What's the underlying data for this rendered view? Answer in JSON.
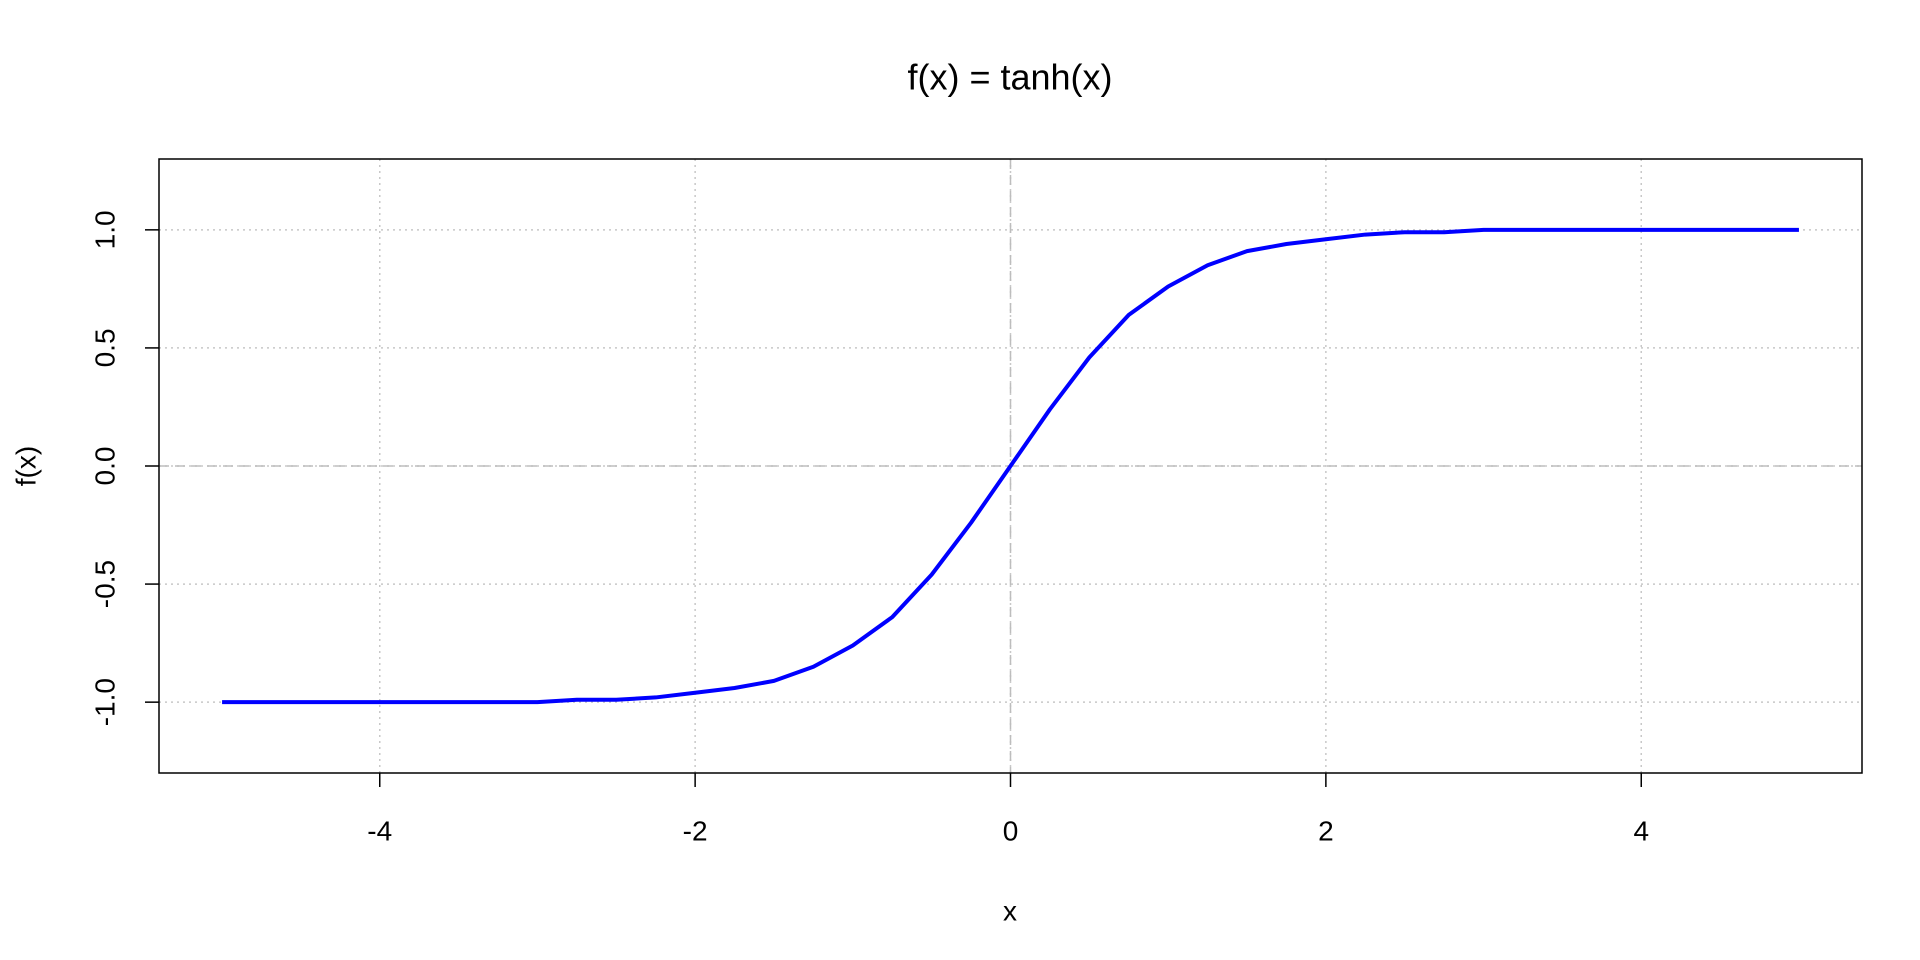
{
  "chart_data": {
    "type": "line",
    "title": "f(x) = tanh(x)",
    "x_label": "x",
    "y_label": "f(x)",
    "x": [
      -5,
      -4.75,
      -4.5,
      -4.25,
      -4,
      -3.75,
      -3.5,
      -3.25,
      -3,
      -2.75,
      -2.5,
      -2.25,
      -2,
      -1.75,
      -1.5,
      -1.25,
      -1,
      -0.75,
      -0.5,
      -0.25,
      0,
      0.25,
      0.5,
      0.75,
      1,
      1.25,
      1.5,
      1.75,
      2,
      2.25,
      2.5,
      2.75,
      3,
      3.25,
      3.5,
      3.75,
      4,
      4.25,
      4.5,
      4.75,
      5
    ],
    "values": [
      -1,
      -1,
      -1,
      -1,
      -1,
      -1,
      -1,
      -1,
      -1,
      -0.99,
      -0.99,
      -0.98,
      -0.96,
      -0.94,
      -0.91,
      -0.85,
      -0.76,
      -0.64,
      -0.46,
      -0.24,
      0,
      0.24,
      0.46,
      0.64,
      0.76,
      0.85,
      0.91,
      0.94,
      0.96,
      0.98,
      0.99,
      0.99,
      1,
      1,
      1,
      1,
      1,
      1,
      1,
      1,
      1
    ],
    "color": "#0000ff",
    "xlim": [
      -5.4,
      5.4
    ],
    "ylim": [
      -1.3,
      1.3
    ],
    "xticks": [
      -4,
      -2,
      0,
      2,
      4
    ],
    "yticks": [
      {
        "value": -1,
        "label": "-1.0"
      },
      {
        "value": -0.5,
        "label": "-0.5"
      },
      {
        "value": 0,
        "label": "0.0"
      },
      {
        "value": 0.5,
        "label": "0.5"
      },
      {
        "value": 1,
        "label": "1.0"
      }
    ],
    "grid": true,
    "zero_lines": true
  }
}
